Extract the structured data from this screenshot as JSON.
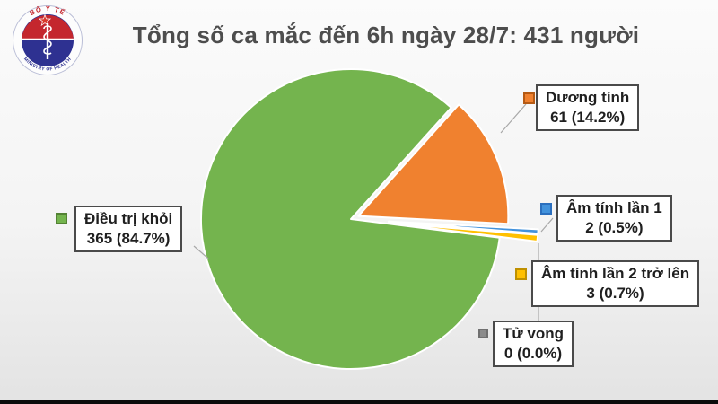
{
  "title": "Tổng số ca mắc đến 6h ngày 28/7: 431 người",
  "logo": {
    "top_text": "BỘ Y TẾ",
    "bottom_text": "MINISTRY OF HEALTH"
  },
  "chart_data": {
    "type": "pie",
    "title": "Tổng số ca mắc đến 6h ngày 28/7: 431 người",
    "total": 431,
    "unit": "người",
    "start_angle_deg": 42,
    "legend_position": "callout-labels",
    "slices": [
      {
        "label": "Dương tính",
        "value": 61,
        "pct": "14.2%",
        "display": "61 (14.2%)",
        "color": "#F0812F",
        "border": "#B55A14",
        "explode": 9
      },
      {
        "label": "Âm tính lần 1",
        "value": 2,
        "pct": "0.5%",
        "display": "2 (0.5%)",
        "color": "#4292DC",
        "border": "#2B6FBE",
        "explode": 42
      },
      {
        "label": "Âm tính lần 2 trở lên",
        "value": 3,
        "pct": "0.7%",
        "display": "3 (0.7%)",
        "color": "#FFC000",
        "border": "#BF9000",
        "explode": 42
      },
      {
        "label": "Tử vong",
        "value": 0,
        "pct": "0.0%",
        "display": "0 (0.0%)",
        "color": "#8C8C8C",
        "border": "#707070",
        "explode": 0
      },
      {
        "label": "Điều trị khỏi",
        "value": 365,
        "pct": "84.7%",
        "display": "365 (84.7%)",
        "color": "#74B44E",
        "border": "#538234",
        "explode": 0
      }
    ]
  }
}
